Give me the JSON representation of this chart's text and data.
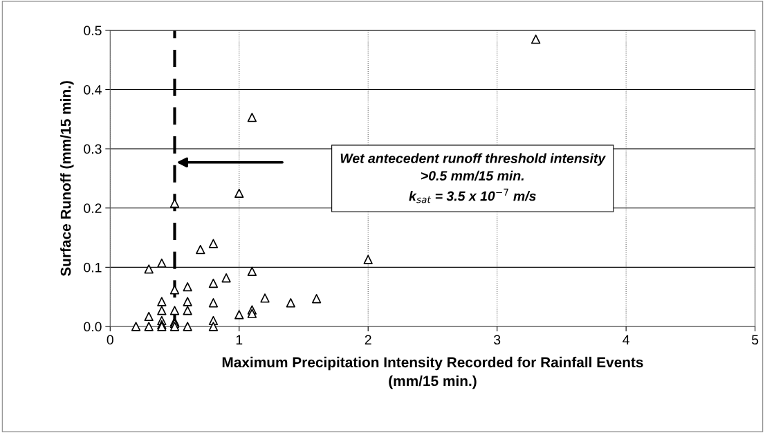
{
  "chart_data": {
    "type": "scatter",
    "xlabel": "Maximum Precipitation Intensity Recorded for Rainfall Events\n(mm/15 min.)",
    "ylabel": "Surface Runoff (mm/15 min.)",
    "x": [
      0.2,
      0.3,
      0.3,
      0.3,
      0.4,
      0.4,
      0.4,
      0.4,
      0.4,
      0.4,
      0.5,
      0.5,
      0.5,
      0.5,
      0.5,
      0.5,
      0.6,
      0.6,
      0.6,
      0.6,
      0.7,
      0.8,
      0.8,
      0.8,
      0.8,
      0.8,
      0.9,
      1.0,
      1.0,
      1.1,
      1.1,
      1.1,
      1.1,
      1.2,
      1.4,
      1.6,
      2.0,
      3.3
    ],
    "values": [
      0,
      0.097,
      0.017,
      0,
      0.107,
      0.042,
      0.027,
      0.01,
      0.003,
      0,
      0.208,
      0.062,
      0.027,
      0.008,
      0.005,
      0,
      0.067,
      0.042,
      0.027,
      0,
      0.13,
      0.14,
      0.073,
      0.04,
      0.01,
      0,
      0.082,
      0.225,
      0.02,
      0.353,
      0.093,
      0.028,
      0.022,
      0.048,
      0.04,
      0.047,
      0.113,
      0.485
    ],
    "color": "#000000",
    "marker": "triangle",
    "xlim": [
      0,
      5
    ],
    "xticks": [
      0,
      1,
      2,
      3,
      4,
      5
    ],
    "ylim": [
      0,
      0.5
    ],
    "yticks": [
      {
        "value": 0,
        "label": "0.0"
      },
      0.1,
      0.2,
      0.3,
      0.4,
      0.5
    ],
    "grid": true,
    "ref_lines": [
      {
        "axis": "x",
        "value": 0.5,
        "line_style": "dashed",
        "color": "#000000"
      }
    ],
    "annotations": [
      "Wet antecedent runoff threshold intensity\n>0.5 mm/15 min.\nk$_{sat}$ = 3.5 x 10$^{−7}$ m/s"
    ]
  }
}
